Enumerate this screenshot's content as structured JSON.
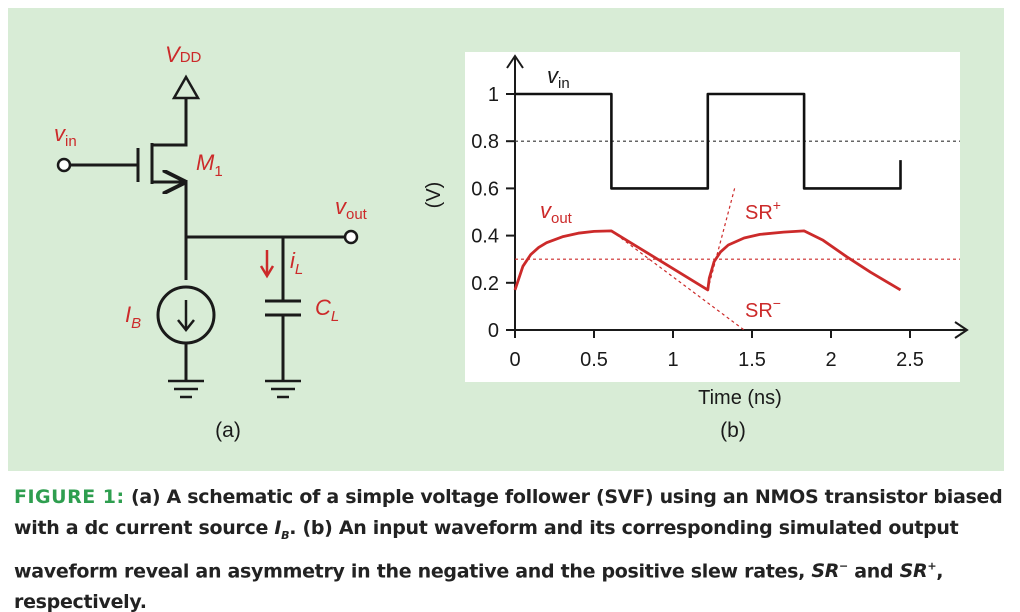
{
  "colors": {
    "panel_bg": "#d8ecd6",
    "circuit": "#cc2a2a",
    "wire": "#1a1a1a",
    "caption_label": "#2e9e4f"
  },
  "schematic": {
    "vdd_label": "V",
    "vdd_sub": "DD",
    "vin_label": "v",
    "vin_sub": "in",
    "m1_label": "M",
    "m1_sub": "1",
    "vout_label": "v",
    "vout_sub": "out",
    "il_label": "i",
    "il_sub": "L",
    "ib_label": "I",
    "ib_sub": "B",
    "cl_label": "C",
    "cl_sub": "L",
    "panel_label": "(a)"
  },
  "plot": {
    "xlabel": "Time (ns)",
    "ylabel": "(V)",
    "xticks": [
      "0",
      "0.5",
      "1",
      "1.5",
      "2",
      "2.5"
    ],
    "yticks": [
      "0",
      "0.2",
      "0.4",
      "0.6",
      "0.8",
      "1"
    ],
    "vin_label": "v",
    "vin_sub": "in",
    "vout_label": "v",
    "vout_sub": "out",
    "sr_plus": "SR",
    "sr_plus_sup": "+",
    "sr_minus": "SR",
    "sr_minus_sup": "−",
    "panel_label": "(b)"
  },
  "chart_data": {
    "type": "line",
    "xlabel": "Time (ns)",
    "ylabel": "(V)",
    "xlim": [
      0,
      2.6
    ],
    "ylim": [
      0,
      1.05
    ],
    "series": [
      {
        "name": "vin",
        "points": [
          [
            0,
            1
          ],
          [
            0.61,
            1
          ],
          [
            0.61,
            0.6
          ],
          [
            1.22,
            0.6
          ],
          [
            1.22,
            1
          ],
          [
            1.83,
            1
          ],
          [
            1.83,
            0.6
          ],
          [
            2.44,
            0.6
          ],
          [
            2.44,
            0.72
          ]
        ]
      },
      {
        "name": "vout",
        "points": [
          [
            0,
            0.17
          ],
          [
            0.05,
            0.27
          ],
          [
            0.1,
            0.32
          ],
          [
            0.15,
            0.35
          ],
          [
            0.2,
            0.37
          ],
          [
            0.3,
            0.395
          ],
          [
            0.4,
            0.41
          ],
          [
            0.5,
            0.418
          ],
          [
            0.61,
            0.42
          ],
          [
            1.22,
            0.17
          ],
          [
            1.23,
            0.22
          ],
          [
            1.26,
            0.29
          ],
          [
            1.3,
            0.33
          ],
          [
            1.35,
            0.36
          ],
          [
            1.45,
            0.39
          ],
          [
            1.55,
            0.405
          ],
          [
            1.7,
            0.415
          ],
          [
            1.83,
            0.42
          ],
          [
            1.95,
            0.38
          ],
          [
            2.1,
            0.31
          ],
          [
            2.25,
            0.245
          ],
          [
            2.44,
            0.17
          ]
        ]
      }
    ],
    "reference_lines": [
      {
        "type": "hline",
        "y": 0.8,
        "style": "dashed",
        "color": "black"
      },
      {
        "type": "hline",
        "y": 0.3,
        "style": "dashed",
        "color": "red"
      },
      {
        "type": "line",
        "from": [
          1.22,
          0.17
        ],
        "to": [
          1.39,
          0.6
        ],
        "style": "dashed",
        "color": "red"
      },
      {
        "type": "line",
        "from": [
          0.61,
          0.42
        ],
        "to": [
          1.45,
          0
        ],
        "style": "dashed",
        "color": "red"
      }
    ]
  },
  "caption": {
    "label": "FIGURE 1:",
    "part1": " (a) A schematic of a simple voltage follower (SVF) using an NMOS transistor biased with a dc current source ",
    "ib": "I",
    "ib_sub": "B",
    "part2": ". (b) An input waveform and its corresponding simulated output waveform reveal an asymmetry in the negative and the positive slew rates, ",
    "srm": "SR",
    "srm_sup": "−",
    "part3": " and ",
    "srp": "SR",
    "srp_sup": "+",
    "part4": ", respectively."
  }
}
